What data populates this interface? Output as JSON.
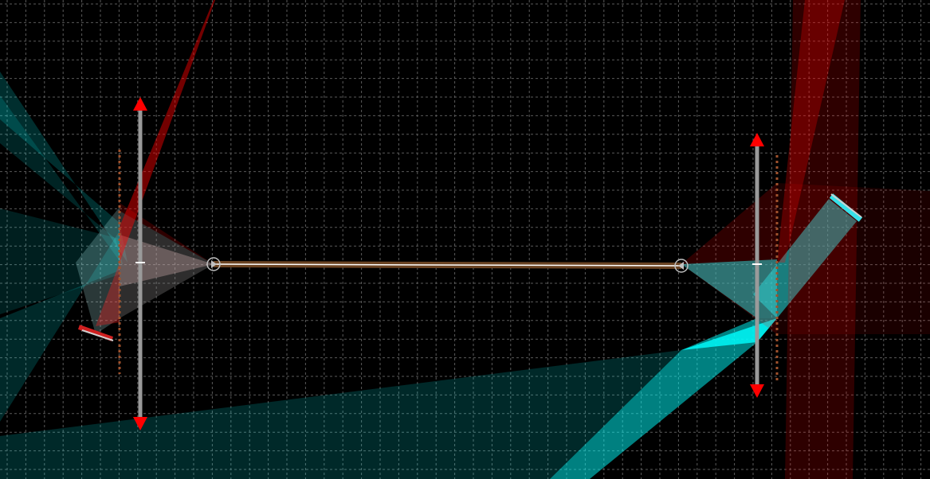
{
  "simulator": {
    "background_color": "#000000",
    "grid": {
      "visible": true,
      "color": "#5a5a5a",
      "style": "dashed"
    },
    "colors": {
      "beam_cyan": "#00ffff",
      "beam_red": "#ff0000",
      "handle_arrow": "#ff0000",
      "lens_axis": "#9a9a9a",
      "fiber": "#6b4423",
      "fiber_core": "#ffffff",
      "focal_marker": "#a0522d",
      "mirror_cyan": "#36e0e8",
      "mirror_red": "#d02020"
    },
    "objects": [
      {
        "id": "lens-left",
        "kind": "ideal-lens",
        "icon": "lens-icon",
        "interactable": true
      },
      {
        "id": "lens-right",
        "kind": "ideal-lens",
        "icon": "lens-icon",
        "interactable": true
      },
      {
        "id": "fiber-endpoint-left",
        "kind": "point-source",
        "icon": "source-endpoint-icon",
        "interactable": true
      },
      {
        "id": "fiber-endpoint-right",
        "kind": "point-source",
        "icon": "source-endpoint-icon",
        "interactable": true
      },
      {
        "id": "fiber-link",
        "kind": "optical-fiber",
        "icon": "fiber-icon",
        "interactable": true
      },
      {
        "id": "mirror-left",
        "kind": "plane-mirror",
        "icon": "mirror-icon",
        "interactable": true
      },
      {
        "id": "mirror-right",
        "kind": "plane-mirror",
        "icon": "mirror-icon",
        "interactable": true
      }
    ]
  }
}
